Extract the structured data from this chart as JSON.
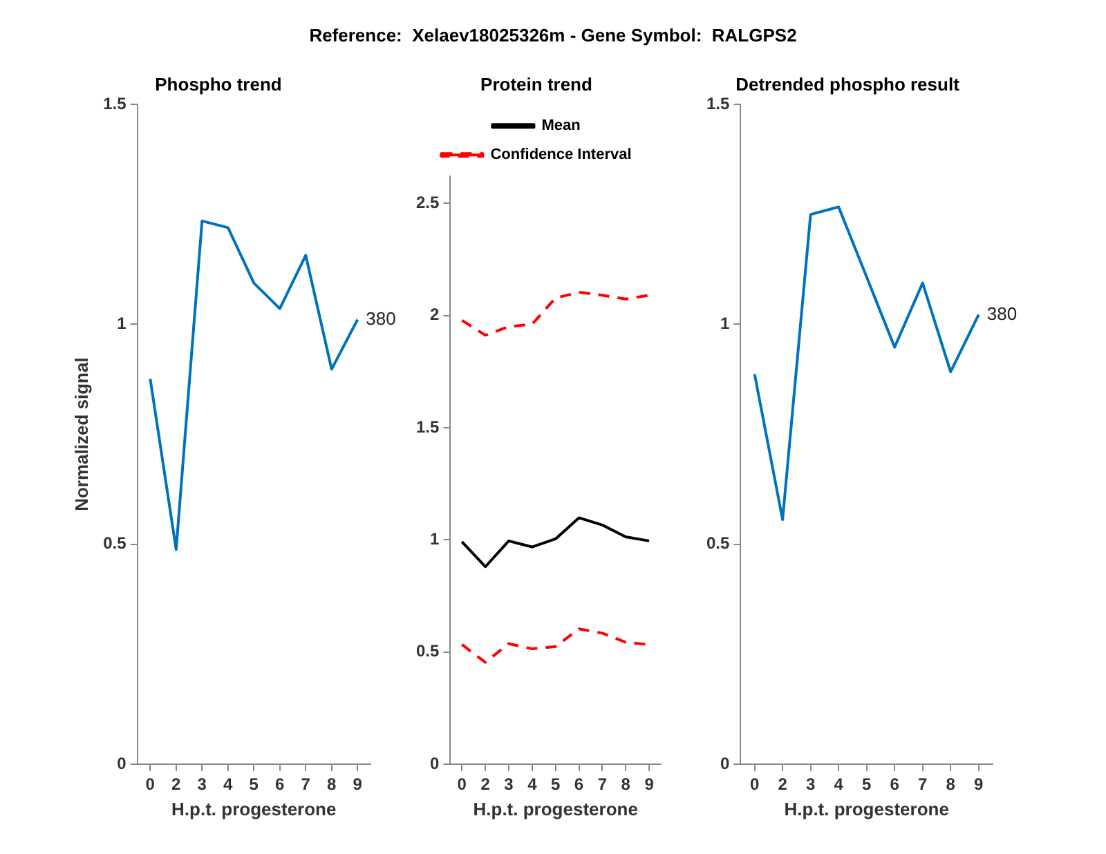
{
  "chart_data": [
    {
      "type": "line",
      "title": "Reference:  Xelaev18025326m - Gene Symbol:  RALGPS2",
      "subtitle": "Phospho trend",
      "xlabel": "H.p.t. progesterone",
      "ylabel": "Normalized signal",
      "categories": [
        "0",
        "2",
        "3",
        "4",
        "5",
        "6",
        "7",
        "8",
        "9"
      ],
      "series": [
        {
          "color": "#0072bd",
          "values": [
            0.876,
            0.488,
            1.235,
            1.22,
            1.094,
            1.036,
            1.157,
            0.898,
            1.011
          ]
        }
      ],
      "ylim": [
        0,
        1.5
      ],
      "yticks": [
        0,
        0.5,
        1,
        1.5
      ],
      "grid": false,
      "annotations": [
        {
          "text": "380",
          "x": "9",
          "y": 1.011
        }
      ]
    },
    {
      "type": "line",
      "subtitle": "Protein trend",
      "xlabel": "H.p.t. progesterone",
      "categories": [
        "0",
        "2",
        "3",
        "4",
        "5",
        "6",
        "7",
        "8",
        "9"
      ],
      "series": [
        {
          "name": "Mean",
          "color": "#000000",
          "line_style": "solid",
          "values": [
            0.991,
            0.88,
            0.995,
            0.968,
            1.004,
            1.098,
            1.066,
            1.013,
            0.995
          ]
        },
        {
          "name": "Confidence Interval",
          "color": "#ff0000",
          "line_style": "dashed",
          "values": [
            1.978,
            1.912,
            1.95,
            1.961,
            2.078,
            2.103,
            2.09,
            2.073,
            2.09
          ]
        },
        {
          "color": "#ff0000",
          "line_style": "dashed",
          "values": [
            0.533,
            0.454,
            0.537,
            0.514,
            0.524,
            0.603,
            0.584,
            0.543,
            0.533
          ]
        }
      ],
      "ylim": [
        0,
        2.62
      ],
      "yticks": [
        0,
        0.5,
        1,
        1.5,
        2,
        2.5
      ],
      "grid": false,
      "legend": "top"
    },
    {
      "type": "line",
      "subtitle": "Detrended phospho result",
      "xlabel": "H.p.t. progesterone",
      "categories": [
        "0",
        "2",
        "3",
        "4",
        "5",
        "6",
        "7",
        "8",
        "9"
      ],
      "series": [
        {
          "color": "#0072bd",
          "values": [
            0.887,
            0.556,
            1.25,
            1.267,
            1.108,
            0.948,
            1.094,
            0.892,
            1.022
          ]
        }
      ],
      "ylim": [
        0,
        1.5
      ],
      "yticks": [
        0,
        0.5,
        1,
        1.5
      ],
      "grid": false,
      "annotations": [
        {
          "text": "380",
          "x": "9",
          "y": 1.022
        }
      ]
    }
  ]
}
